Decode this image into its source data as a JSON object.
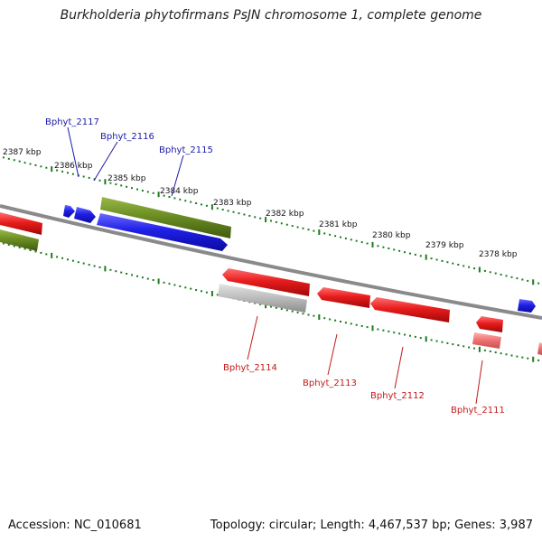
{
  "title": "Burkholderia phytofirmans PsJN chromosome 1, complete genome",
  "footer": {
    "accession": "Accession: NC_010681",
    "stats": "Topology: circular; Length: 4,467,537 bp; Genes: 3,987"
  },
  "colors": {
    "forward_cds": "#1f1fe6",
    "reverse_cds": "#e81c1c",
    "rna": "#6b8e23",
    "pseudo": "#b8b8b8",
    "ticks": "#1f7a1f",
    "backbone": "#8a8a8a",
    "label_blue": "#1a1aa8",
    "label_red": "#c21a1a"
  },
  "kbp_labels": [
    "2387 kbp",
    "2386 kbp",
    "2385 kbp",
    "2384 kbp",
    "2383 kbp",
    "2382 kbp",
    "2381 kbp",
    "2380 kbp",
    "2379 kbp",
    "2378 kbp"
  ],
  "gene_labels_top": [
    "Bphyt_2117",
    "Bphyt_2116",
    "Bphyt_2115"
  ],
  "gene_labels_bottom": [
    "Bphyt_2114",
    "Bphyt_2113",
    "Bphyt_2112",
    "Bphyt_2111"
  ]
}
